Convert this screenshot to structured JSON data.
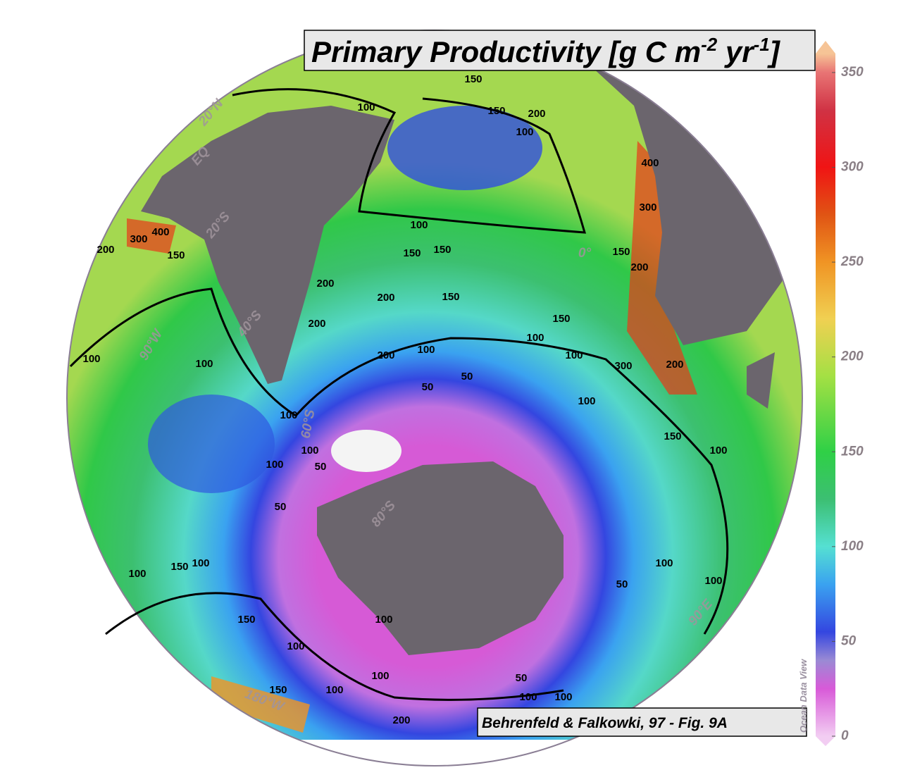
{
  "title": [
    "Primary Productivity [g C m",
    "-2",
    " yr",
    "-1",
    "]"
  ],
  "credit": "Behrenfeld & Falkowki, 97 - Fig. 9A",
  "watermark": "Ocean Data View",
  "grid_labels": [
    "20°N",
    "EQ",
    "20°S",
    "40°S",
    "60°S",
    "80°S",
    "90°W",
    "0°",
    "180°W",
    "90°E"
  ],
  "contour_labels": [
    100,
    150,
    150,
    200,
    100,
    100,
    150,
    150,
    200,
    200,
    150,
    150,
    100,
    100,
    200,
    200,
    100,
    50,
    50,
    100,
    100,
    150,
    200,
    300,
    400,
    300,
    400,
    200,
    150,
    300,
    200,
    150,
    100,
    100,
    100,
    50,
    100,
    50,
    100,
    100,
    200,
    100,
    150,
    100,
    100,
    100,
    150,
    100,
    150,
    100,
    100,
    100,
    100,
    50,
    50
  ],
  "colorbar": {
    "lim": [
      0,
      360
    ],
    "ticks": [
      0,
      50,
      100,
      150,
      200,
      250,
      300,
      350
    ],
    "colorscale": [
      [
        0,
        "#f2cdf2"
      ],
      [
        25,
        "#d85ad8"
      ],
      [
        40,
        "#9a8ad4"
      ],
      [
        55,
        "#3446e0"
      ],
      [
        80,
        "#3aa2f0"
      ],
      [
        100,
        "#55e0d2"
      ],
      [
        125,
        "#3cbf72"
      ],
      [
        150,
        "#2fd046"
      ],
      [
        190,
        "#a4e044"
      ],
      [
        220,
        "#f0d052"
      ],
      [
        250,
        "#f09424"
      ],
      [
        275,
        "#e05414"
      ],
      [
        300,
        "#f01414"
      ],
      [
        330,
        "#d03244"
      ],
      [
        350,
        "#e87474"
      ],
      [
        360,
        "#f6c496"
      ]
    ]
  }
}
